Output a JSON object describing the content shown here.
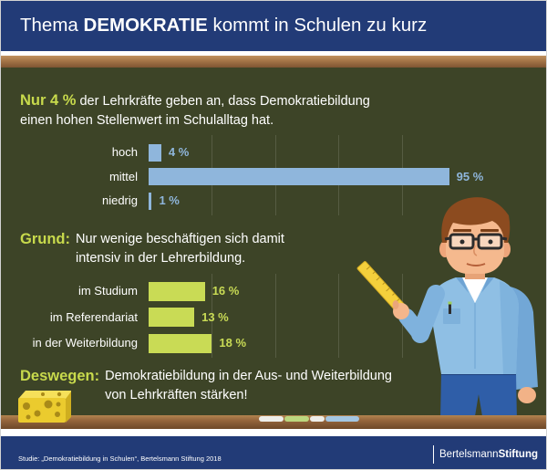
{
  "header": {
    "title_start": "Thema",
    "title_emphasis": "DEMOKRATIE",
    "title_end": "kommt in Schulen zu kurz"
  },
  "finding": {
    "highlight": "Nur 4 %",
    "line1": "der Lehrkräfte geben an, dass Demokratiebildung",
    "line2": "einen hohen Stellenwert im Schulalltag hat."
  },
  "reason": {
    "label": "Grund:",
    "line1": "Nur wenige beschäftigen sich damit",
    "line2": "intensiv in der Lehrerbildung."
  },
  "conclusion": {
    "label": "Deswegen:",
    "line1": "Demokratiebildung in der Aus- und Weiterbildung",
    "line2": "von Lehrkräften stärken!"
  },
  "chart_data": [
    {
      "type": "bar",
      "orientation": "horizontal",
      "categories": [
        "hoch",
        "mittel",
        "niedrig"
      ],
      "values": [
        4,
        95,
        1
      ],
      "value_labels": [
        "4 %",
        "95 %",
        "1 %"
      ],
      "xlim": [
        0,
        100
      ],
      "grid": true,
      "color": "#8fb6dc"
    },
    {
      "type": "bar",
      "orientation": "horizontal",
      "categories": [
        "im Studium",
        "im Referendariat",
        "in der Weiterbildung"
      ],
      "values": [
        16,
        13,
        18
      ],
      "value_labels": [
        "16 %",
        "13 %",
        "18 %"
      ],
      "xlim": [
        0,
        90
      ],
      "grid": true,
      "color": "#c9db55"
    }
  ],
  "footer": {
    "source": "Studie: „Demokratiebildung in Schulen“, Bertelsmann Stiftung 2018",
    "brand_regular": "Bertelsmann",
    "brand_bold": "Stiftung"
  },
  "icons": {
    "teacher": "teacher-illustration",
    "ruler": "ruler-icon",
    "sponge": "sponge-icon",
    "chalk": "chalk-icon"
  },
  "colors": {
    "banner": "#223b77",
    "chalkboard": "#3d4427",
    "wood": "#9a6b40",
    "highlight": "#c8da4c",
    "text": "#ffffff"
  }
}
